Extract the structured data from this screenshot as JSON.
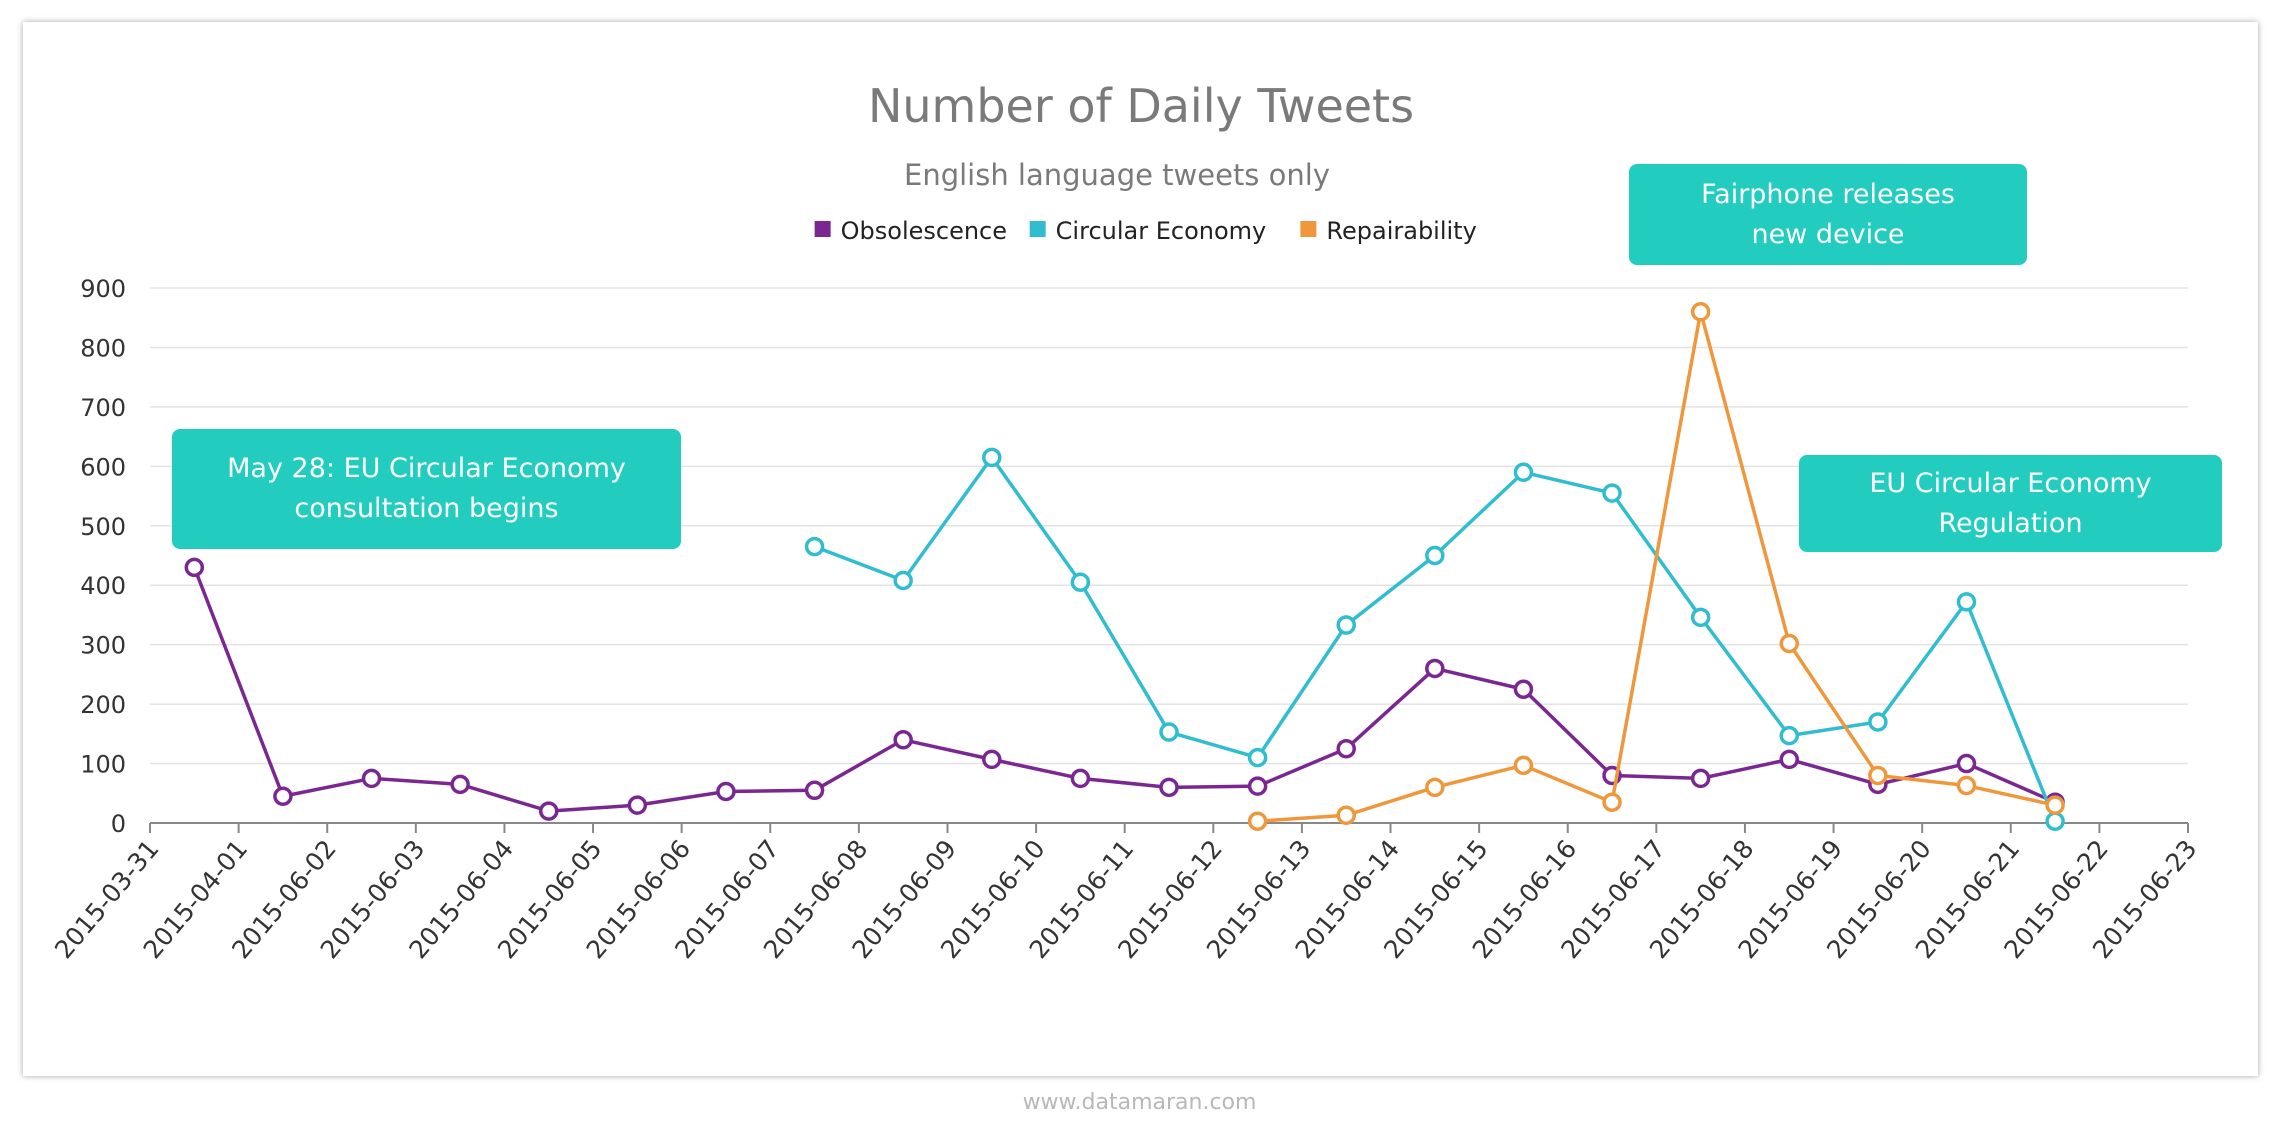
{
  "chart_data": {
    "type": "line",
    "title": "Number of Daily Tweets",
    "subtitle": "English language tweets only",
    "xlabel": "",
    "ylabel": "",
    "categories": [
      "2015-03-31",
      "2015-04-01",
      "2015-06-02",
      "2015-06-03",
      "2015-06-04",
      "2015-06-05",
      "2015-06-06",
      "2015-06-07",
      "2015-06-08",
      "2015-06-09",
      "2015-06-10",
      "2015-06-11",
      "2015-06-12",
      "2015-06-13",
      "2015-06-14",
      "2015-06-15",
      "2015-06-16",
      "2015-06-17",
      "2015-06-18",
      "2015-06-19",
      "2015-06-20",
      "2015-06-21",
      "2015-06-22",
      "2015-06-23"
    ],
    "ylim": [
      0,
      900
    ],
    "yticks": [
      0,
      100,
      200,
      300,
      400,
      500,
      600,
      700,
      800,
      900
    ],
    "grid": true,
    "legend_position": "top-center",
    "series": [
      {
        "name": "Obsolescence",
        "color": "#7b2792",
        "values": [
          430,
          45,
          75,
          65,
          20,
          30,
          53,
          55,
          140,
          107,
          75,
          60,
          62,
          125,
          260,
          225,
          80,
          75,
          107,
          65,
          100,
          35,
          null,
          null
        ]
      },
      {
        "name": "Circular Economy",
        "color": "#30bdd0",
        "values": [
          null,
          null,
          null,
          null,
          null,
          null,
          null,
          465,
          408,
          615,
          405,
          153,
          110,
          333,
          450,
          590,
          555,
          346,
          147,
          170,
          372,
          3,
          null,
          null
        ]
      },
      {
        "name": "Repairability",
        "color": "#f0973c",
        "values": [
          null,
          null,
          null,
          null,
          null,
          null,
          null,
          null,
          null,
          null,
          null,
          null,
          3,
          13,
          60,
          97,
          35,
          860,
          302,
          80,
          63,
          30,
          null,
          null
        ]
      }
    ],
    "annotations": [
      {
        "text": "May 28: EU Circular Economy\nconsultation begins"
      },
      {
        "text": "Fairphone releases\nnew device"
      },
      {
        "text": "EU Circular Economy\nRegulation"
      }
    ]
  },
  "footer": "www.datamaran.com"
}
